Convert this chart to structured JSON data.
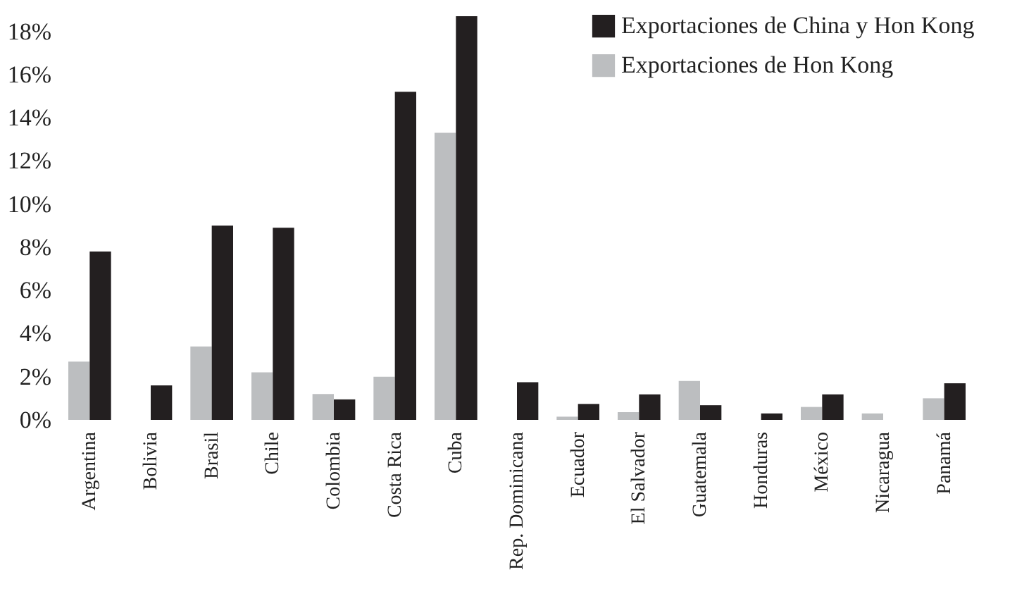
{
  "chart_data": {
    "type": "bar",
    "categories": [
      "Argentina",
      "Bolivia",
      "Brasil",
      "Chile",
      "Colombia",
      "Costa Rica",
      "Cuba",
      "Rep. Dominicana",
      "Ecuador",
      "El Salvador",
      "Guatemala",
      "Honduras",
      "México",
      "Nicaragua",
      "Panamá"
    ],
    "series": [
      {
        "name": "Exportaciones de Hon Kong",
        "color": "#bcbec0",
        "values": [
          2.7,
          0,
          3.4,
          2.2,
          1.2,
          2.0,
          13.3,
          0,
          0.15,
          0.36,
          1.8,
          0,
          0.6,
          0.3,
          1.0
        ]
      },
      {
        "name": "Exportaciones de China y Hon Kong",
        "color": "#231f20",
        "values": [
          7.8,
          1.6,
          9.0,
          8.9,
          0.95,
          15.2,
          18.7,
          1.75,
          0.74,
          1.18,
          0.68,
          0.3,
          1.18,
          0,
          1.7
        ]
      }
    ],
    "ylim": [
      0,
      18.8
    ],
    "yticks": [
      {
        "value": 0,
        "label": "0%"
      },
      {
        "value": 2,
        "label": "2%"
      },
      {
        "value": 4,
        "label": "4%"
      },
      {
        "value": 6,
        "label": "6%"
      },
      {
        "value": 8,
        "label": "8%"
      },
      {
        "value": 10,
        "label": "10%"
      },
      {
        "value": 12,
        "label": "12%"
      },
      {
        "value": 14,
        "label": "14%"
      },
      {
        "value": 16,
        "label": "16%"
      },
      {
        "value": 18,
        "label": "18%"
      }
    ],
    "grid": false,
    "legend": "top right"
  }
}
